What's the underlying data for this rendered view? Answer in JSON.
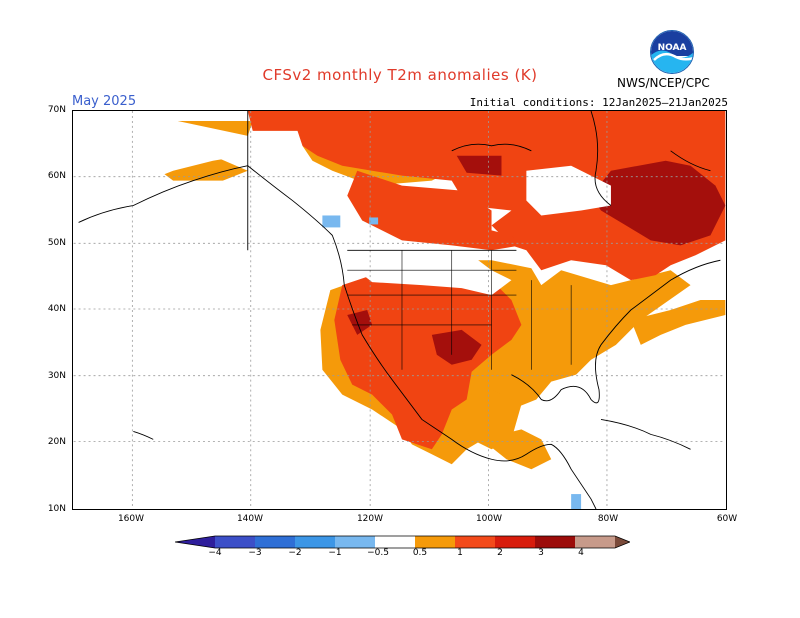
{
  "header": {
    "title": "CFSv2 monthly T2m anomalies (K)",
    "month": "May 2025",
    "initial_conditions": "Initial conditions: 12Jan2025–21Jan2025",
    "org": "NWS/NCEP/CPC",
    "logo_text": "NOAA"
  },
  "axes": {
    "lat_labels": [
      "70N",
      "60N",
      "50N",
      "40N",
      "30N",
      "20N",
      "10N"
    ],
    "lon_labels": [
      "160W",
      "140W",
      "120W",
      "100W",
      "80W",
      "60W"
    ]
  },
  "colorbar": {
    "labels": [
      "−4",
      "−3",
      "−2",
      "−1",
      "−0.5",
      "0.5",
      "1",
      "2",
      "3",
      "4"
    ],
    "colors": [
      "#2e1e9c",
      "#3c4fc8",
      "#2f6fd6",
      "#3c96e6",
      "#78b8ef",
      "#ffffff",
      "#f59a0a",
      "#f34a1a",
      "#d81c0c",
      "#9c0c0a",
      "#c79a8a",
      "#7a4a3a"
    ]
  },
  "colors": {
    "title": "#e03a2a",
    "month": "#3a5fcd",
    "anomaly_0_5_1": "#f59a0a",
    "anomaly_1_2": "#f04412",
    "anomaly_2_3": "#a40f0c",
    "anomaly_neg_0_5_1": "#78b8ef",
    "grid": "#9a9a9a"
  }
}
